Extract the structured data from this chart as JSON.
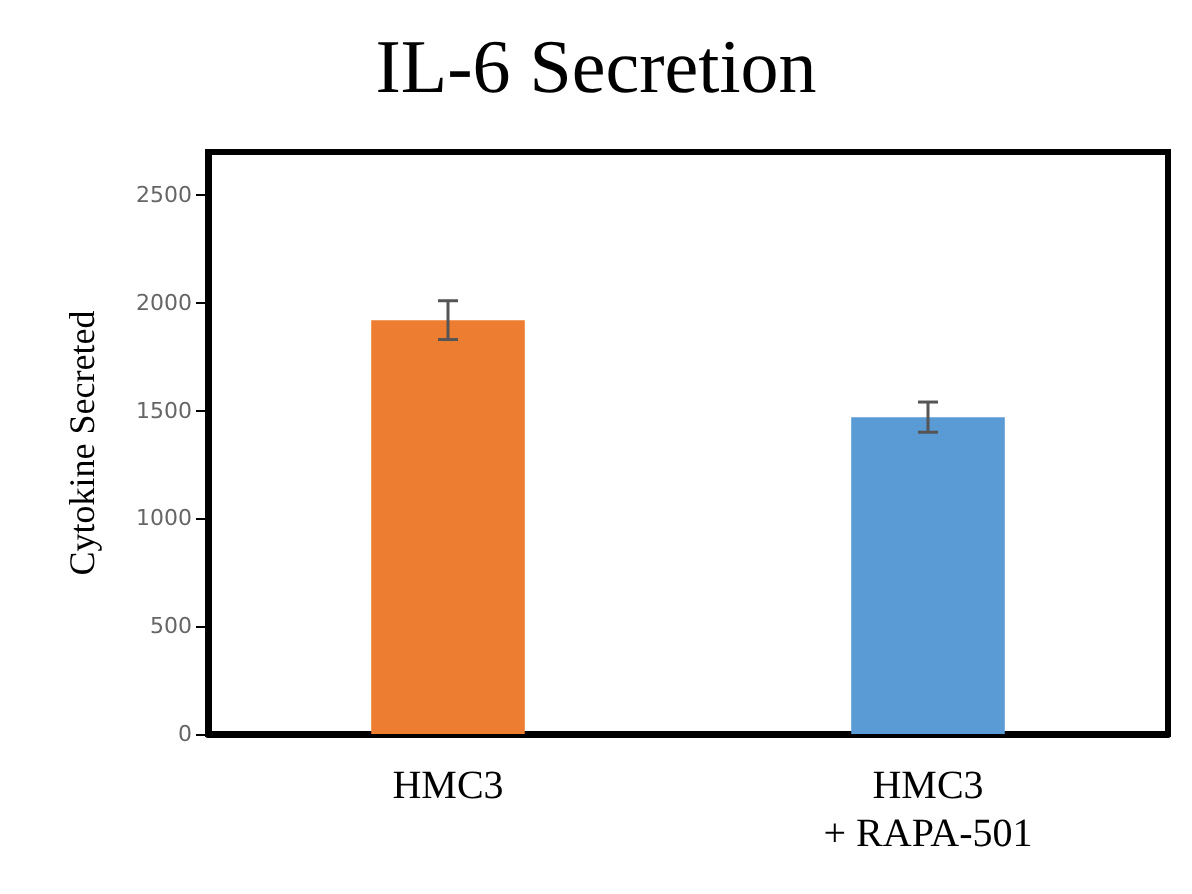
{
  "chart_data": {
    "type": "bar",
    "title": "IL-6 Secretion",
    "ylabel": "Cytokine Secreted",
    "categories": [
      "HMC3",
      "HMC3\n+ RAPA-501"
    ],
    "values": [
      1920,
      1470
    ],
    "errors": [
      90,
      70
    ],
    "colors": [
      "#ed7d31",
      "#5b9bd5"
    ],
    "ylim": [
      0,
      2700
    ],
    "yticks": [
      0,
      500,
      1000,
      1500,
      2000,
      2500
    ],
    "grid": false
  }
}
